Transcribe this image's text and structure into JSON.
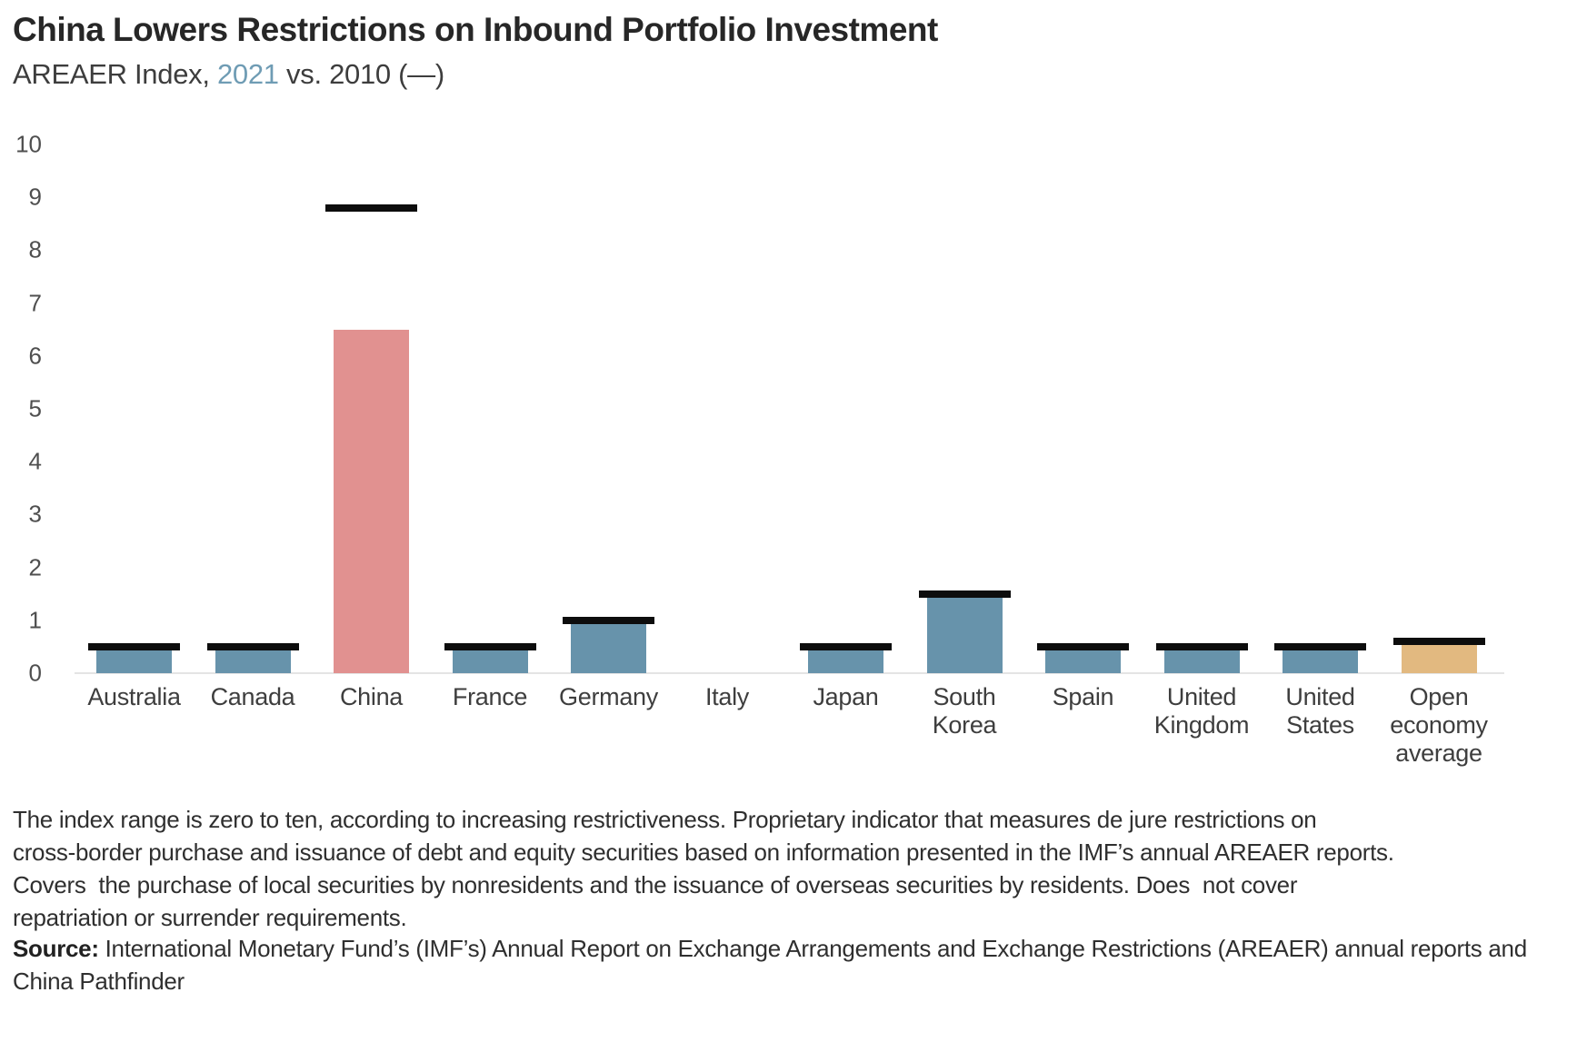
{
  "header": {
    "title": "China Lowers Restrictions on Inbound Portfolio Investment",
    "subtitle_prefix": "AREAER Index, ",
    "subtitle_year_2021": "2021",
    "subtitle_suffix": " vs. 2010 (—)"
  },
  "chart_data": {
    "type": "bar",
    "title": "China Lowers Restrictions on Inbound Portfolio Investment",
    "subtitle": "AREAER Index, 2021 vs. 2010 (—)",
    "categories": [
      "Australia",
      "Canada",
      "China",
      "France",
      "Germany",
      "Italy",
      "Japan",
      "South Korea",
      "Spain",
      "United Kingdom",
      "United States",
      "Open economy average"
    ],
    "series": [
      {
        "name": "2021",
        "style": "bar",
        "values": [
          0.5,
          0.5,
          6.5,
          0.5,
          1.0,
          0,
          0.5,
          1.5,
          0.5,
          0.5,
          0.5,
          0.6
        ]
      },
      {
        "name": "2010",
        "style": "dash",
        "values": [
          0.5,
          0.5,
          8.8,
          0.5,
          1.0,
          0,
          0.5,
          1.5,
          0.5,
          0.5,
          0.5,
          0.6
        ]
      }
    ],
    "ylim": [
      0,
      10
    ],
    "yticks": [
      0,
      1,
      2,
      3,
      4,
      5,
      6,
      7,
      8,
      9,
      10
    ],
    "xlabel": "",
    "ylabel": "",
    "grid": false,
    "legend_position": "in-subtitle (2021 = colored bars, 2010 = black dash —)",
    "bar_colors": [
      "#6793ab",
      "#6793ab",
      "#e19190",
      "#6793ab",
      "#6793ab",
      "#6793ab",
      "#6793ab",
      "#6793ab",
      "#6793ab",
      "#6793ab",
      "#6793ab",
      "#e2b980"
    ],
    "dash_color": "#0d0d0d",
    "accent_color": "#6f9cb4"
  },
  "footnote": {
    "lines": [
      "The index range is zero to ten, according to increasing restrictiveness. Proprietary indicator that measures de jure restrictions on",
      "cross-border purchase and issuance of debt and equity securities based on information presented in the IMF’s annual AREAER reports.",
      "Covers  the purchase of local securities by nonresidents and the issuance of overseas securities by residents. Does  not cover",
      "repatriation or surrender requirements."
    ]
  },
  "source": {
    "label": "Source:",
    "line1_rest": " International Monetary Fund’s (IMF’s) Annual Report on Exchange Arrangements and Exchange Restrictions (AREAER) annual",
    "line2": "reports and China Pathfinder"
  }
}
